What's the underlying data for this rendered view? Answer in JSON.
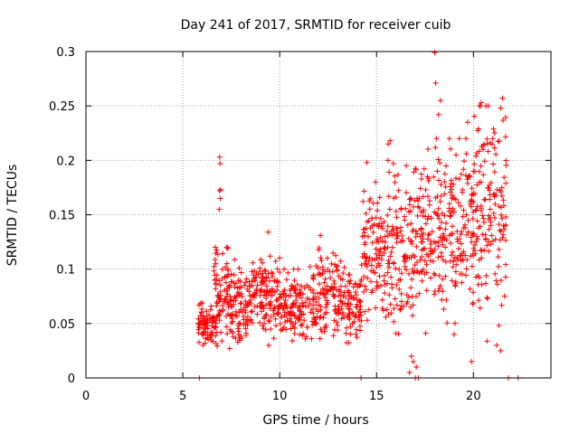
{
  "chart_data": {
    "type": "scatter",
    "title": "Day 241 of 2017, SRMTID for receiver cuib",
    "xlabel": "GPS time / hours",
    "ylabel": "SRMTID / TECUs",
    "xlim": [
      0,
      24
    ],
    "ylim": [
      0,
      0.3
    ],
    "x_ticks": [
      0,
      5,
      10,
      15,
      20
    ],
    "x_tick_labels": [
      "0",
      "5",
      "10",
      "15",
      "20"
    ],
    "y_ticks": [
      0,
      0.05,
      0.1,
      0.15,
      0.2,
      0.25,
      0.3
    ],
    "y_tick_labels": [
      "0",
      "0.05",
      "0.1",
      "0.15",
      "0.2",
      "0.25",
      "0.3"
    ],
    "grid": true,
    "marker": "plus",
    "color": "#ff0000",
    "point_density": [
      {
        "x_range": [
          5.8,
          6.6
        ],
        "y_range": [
          0.02,
          0.07
        ],
        "count": 70
      },
      {
        "x_range": [
          6.6,
          7.4
        ],
        "y_range": [
          0.01,
          0.12
        ],
        "count": 90
      },
      {
        "x_range": [
          7.4,
          8.5
        ],
        "y_range": [
          0.01,
          0.11
        ],
        "count": 100
      },
      {
        "x_range": [
          8.5,
          10.0
        ],
        "y_range": [
          0.02,
          0.12
        ],
        "count": 130
      },
      {
        "x_range": [
          10.0,
          11.5
        ],
        "y_range": [
          0.02,
          0.1
        ],
        "count": 120
      },
      {
        "x_range": [
          11.5,
          13.0
        ],
        "y_range": [
          0.02,
          0.12
        ],
        "count": 120
      },
      {
        "x_range": [
          13.0,
          14.2
        ],
        "y_range": [
          0.02,
          0.11
        ],
        "count": 100
      },
      {
        "x_range": [
          14.2,
          15.5
        ],
        "y_range": [
          0.03,
          0.18
        ],
        "count": 110
      },
      {
        "x_range": [
          15.5,
          17.0
        ],
        "y_range": [
          0.02,
          0.2
        ],
        "count": 130
      },
      {
        "x_range": [
          17.0,
          18.5
        ],
        "y_range": [
          0.02,
          0.22
        ],
        "count": 130
      },
      {
        "x_range": [
          18.5,
          20.0
        ],
        "y_range": [
          0.02,
          0.22
        ],
        "count": 130
      },
      {
        "x_range": [
          20.0,
          21.7
        ],
        "y_range": [
          0.02,
          0.25
        ],
        "count": 150
      }
    ],
    "points": [
      {
        "x": 6.9,
        "y": 0.203
      },
      {
        "x": 6.92,
        "y": 0.197
      },
      {
        "x": 6.95,
        "y": 0.173
      },
      {
        "x": 6.9,
        "y": 0.172
      },
      {
        "x": 6.93,
        "y": 0.165
      },
      {
        "x": 6.88,
        "y": 0.155
      },
      {
        "x": 9.4,
        "y": 0.134
      },
      {
        "x": 12.1,
        "y": 0.131
      },
      {
        "x": 14.5,
        "y": 0.198
      },
      {
        "x": 15.7,
        "y": 0.218
      },
      {
        "x": 15.6,
        "y": 0.215
      },
      {
        "x": 17.2,
        "y": 0.165
      },
      {
        "x": 18.0,
        "y": 0.299
      },
      {
        "x": 18.05,
        "y": 0.271
      },
      {
        "x": 18.3,
        "y": 0.255
      },
      {
        "x": 18.2,
        "y": 0.242
      },
      {
        "x": 19.7,
        "y": 0.235
      },
      {
        "x": 20.4,
        "y": 0.253
      },
      {
        "x": 21.5,
        "y": 0.257
      },
      {
        "x": 21.4,
        "y": 0.248
      },
      {
        "x": 21.0,
        "y": 0.22
      },
      {
        "x": 20.5,
        "y": 0.21
      },
      {
        "x": 19.1,
        "y": 0.205
      },
      {
        "x": 20.0,
        "y": 0.19
      },
      {
        "x": 16.8,
        "y": 0.02
      },
      {
        "x": 16.9,
        "y": 0.015
      },
      {
        "x": 17.05,
        "y": 0.01
      },
      {
        "x": 16.7,
        "y": 0.005
      },
      {
        "x": 17.0,
        "y": 0.0
      },
      {
        "x": 17.15,
        "y": 0.0
      },
      {
        "x": 14.2,
        "y": 0.0
      },
      {
        "x": 5.85,
        "y": 0.0
      },
      {
        "x": 21.8,
        "y": 0.0
      },
      {
        "x": 22.3,
        "y": 0.0
      },
      {
        "x": 19.0,
        "y": 0.04
      },
      {
        "x": 21.2,
        "y": 0.03
      },
      {
        "x": 19.9,
        "y": 0.015
      },
      {
        "x": 21.4,
        "y": 0.025
      }
    ]
  }
}
